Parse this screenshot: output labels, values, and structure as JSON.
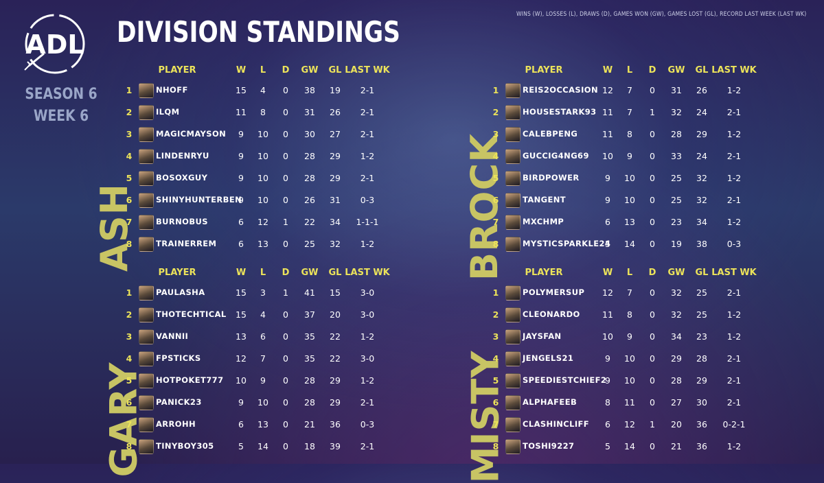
{
  "title": "DIVISION STANDINGS",
  "legend": "WINS (W), LOSSES (L), DRAWS (D), GAMES WON (GW), GAMES LOST (GL), RECORD LAST WEEK (LAST WK)",
  "logo_text": "ADL",
  "season": "SEASON 6",
  "week": "WEEK 6",
  "colors": {
    "accent_yellow": "#ece35a",
    "division_label": "#c8c464"
  },
  "headers": {
    "player": "PLAYER",
    "w": "W",
    "l": "L",
    "d": "D",
    "gw": "GW",
    "gl": "GL",
    "last": "LAST WK"
  },
  "divisions": [
    {
      "name": "ASH",
      "rows": [
        {
          "rank": "1",
          "player": "NHOFF",
          "w": "15",
          "l": "4",
          "d": "0",
          "gw": "38",
          "gl": "19",
          "last": "2-1"
        },
        {
          "rank": "2",
          "player": "ILQM",
          "w": "11",
          "l": "8",
          "d": "0",
          "gw": "31",
          "gl": "26",
          "last": "2-1"
        },
        {
          "rank": "3",
          "player": "MAGICMAYSON",
          "w": "9",
          "l": "10",
          "d": "0",
          "gw": "30",
          "gl": "27",
          "last": "2-1"
        },
        {
          "rank": "4",
          "player": "LINDENRYU",
          "w": "9",
          "l": "10",
          "d": "0",
          "gw": "28",
          "gl": "29",
          "last": "1-2"
        },
        {
          "rank": "5",
          "player": "BOSOXGUY",
          "w": "9",
          "l": "10",
          "d": "0",
          "gw": "28",
          "gl": "29",
          "last": "2-1"
        },
        {
          "rank": "6",
          "player": "SHINYHUNTERBEN",
          "w": "9",
          "l": "10",
          "d": "0",
          "gw": "26",
          "gl": "31",
          "last": "0-3"
        },
        {
          "rank": "7",
          "player": "BURNOBUS",
          "w": "6",
          "l": "12",
          "d": "1",
          "gw": "22",
          "gl": "34",
          "last": "1-1-1"
        },
        {
          "rank": "8",
          "player": "TRAINERREM",
          "w": "6",
          "l": "13",
          "d": "0",
          "gw": "25",
          "gl": "32",
          "last": "1-2"
        }
      ]
    },
    {
      "name": "BROCK",
      "rows": [
        {
          "rank": "1",
          "player": "REIS2OCCASION",
          "w": "12",
          "l": "7",
          "d": "0",
          "gw": "31",
          "gl": "26",
          "last": "1-2"
        },
        {
          "rank": "2",
          "player": "HOUSESTARK93",
          "w": "11",
          "l": "7",
          "d": "1",
          "gw": "32",
          "gl": "24",
          "last": "2-1"
        },
        {
          "rank": "3",
          "player": "CALEBPENG",
          "w": "11",
          "l": "8",
          "d": "0",
          "gw": "28",
          "gl": "29",
          "last": "1-2"
        },
        {
          "rank": "4",
          "player": "GUCCIG4NG69",
          "w": "10",
          "l": "9",
          "d": "0",
          "gw": "33",
          "gl": "24",
          "last": "2-1"
        },
        {
          "rank": "5",
          "player": "BIRDPOWER",
          "w": "9",
          "l": "10",
          "d": "0",
          "gw": "25",
          "gl": "32",
          "last": "1-2"
        },
        {
          "rank": "6",
          "player": "TANGENT",
          "w": "9",
          "l": "10",
          "d": "0",
          "gw": "25",
          "gl": "32",
          "last": "2-1"
        },
        {
          "rank": "7",
          "player": "MXCHMP",
          "w": "6",
          "l": "13",
          "d": "0",
          "gw": "23",
          "gl": "34",
          "last": "1-2"
        },
        {
          "rank": "8",
          "player": "MYSTICSPARKLE24",
          "w": "5",
          "l": "14",
          "d": "0",
          "gw": "19",
          "gl": "38",
          "last": "0-3"
        }
      ]
    },
    {
      "name": "GARY",
      "rows": [
        {
          "rank": "1",
          "player": "PAULASHA",
          "w": "15",
          "l": "3",
          "d": "1",
          "gw": "41",
          "gl": "15",
          "last": "3-0"
        },
        {
          "rank": "2",
          "player": "THOTECHTICAL",
          "w": "15",
          "l": "4",
          "d": "0",
          "gw": "37",
          "gl": "20",
          "last": "3-0"
        },
        {
          "rank": "3",
          "player": "VANNII",
          "w": "13",
          "l": "6",
          "d": "0",
          "gw": "35",
          "gl": "22",
          "last": "1-2"
        },
        {
          "rank": "4",
          "player": "FPSTICKS",
          "w": "12",
          "l": "7",
          "d": "0",
          "gw": "35",
          "gl": "22",
          "last": "3-0"
        },
        {
          "rank": "5",
          "player": "HOTPOKET777",
          "w": "10",
          "l": "9",
          "d": "0",
          "gw": "28",
          "gl": "29",
          "last": "1-2"
        },
        {
          "rank": "6",
          "player": "PANICK23",
          "w": "9",
          "l": "10",
          "d": "0",
          "gw": "28",
          "gl": "29",
          "last": "2-1"
        },
        {
          "rank": "7",
          "player": "ARROHH",
          "w": "6",
          "l": "13",
          "d": "0",
          "gw": "21",
          "gl": "36",
          "last": "0-3"
        },
        {
          "rank": "8",
          "player": "TINYBOY305",
          "w": "5",
          "l": "14",
          "d": "0",
          "gw": "18",
          "gl": "39",
          "last": "2-1"
        }
      ]
    },
    {
      "name": "MISTY",
      "rows": [
        {
          "rank": "1",
          "player": "POLYMERSUP",
          "w": "12",
          "l": "7",
          "d": "0",
          "gw": "32",
          "gl": "25",
          "last": "2-1"
        },
        {
          "rank": "2",
          "player": "CLEONARDO",
          "w": "11",
          "l": "8",
          "d": "0",
          "gw": "32",
          "gl": "25",
          "last": "1-2"
        },
        {
          "rank": "3",
          "player": "JAYSFAN",
          "w": "10",
          "l": "9",
          "d": "0",
          "gw": "34",
          "gl": "23",
          "last": "1-2"
        },
        {
          "rank": "4",
          "player": "JENGELS21",
          "w": "9",
          "l": "10",
          "d": "0",
          "gw": "29",
          "gl": "28",
          "last": "2-1"
        },
        {
          "rank": "5",
          "player": "SPEEDIESTCHIEF2",
          "w": "9",
          "l": "10",
          "d": "0",
          "gw": "28",
          "gl": "29",
          "last": "2-1"
        },
        {
          "rank": "6",
          "player": "ALPHAFEEB",
          "w": "8",
          "l": "11",
          "d": "0",
          "gw": "27",
          "gl": "30",
          "last": "2-1"
        },
        {
          "rank": "7",
          "player": "CLASHINCLIFF",
          "w": "6",
          "l": "12",
          "d": "1",
          "gw": "20",
          "gl": "36",
          "last": "0-2-1"
        },
        {
          "rank": "8",
          "player": "TOSHI9227",
          "w": "5",
          "l": "14",
          "d": "0",
          "gw": "21",
          "gl": "36",
          "last": "1-2"
        }
      ]
    }
  ]
}
